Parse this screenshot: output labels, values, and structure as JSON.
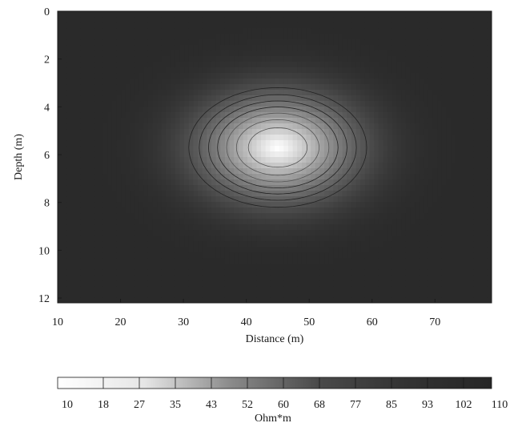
{
  "chart_data": {
    "type": "heatmap",
    "title": "",
    "xlabel": "Distance (m)",
    "ylabel": "Depth (m)",
    "xlim": [
      10,
      79
    ],
    "ylim": [
      0,
      12.2
    ],
    "y_inverted": true,
    "x_ticks": [
      10,
      20,
      30,
      40,
      50,
      60,
      70
    ],
    "y_ticks": [
      0,
      2,
      4,
      6,
      8,
      10,
      12
    ],
    "colorbar": {
      "label": "Ohm*m",
      "range": [
        10,
        110
      ],
      "ticks": [
        "10",
        "18",
        "27",
        "35",
        "43",
        "52",
        "60",
        "68",
        "77",
        "85",
        "93",
        "102",
        "110"
      ],
      "colormap": "white (low) to dark gray (high)"
    },
    "anomaly": {
      "description_value": "low-resistivity body",
      "center_x": 45,
      "center_depth": 5.7,
      "half_width_x": 13,
      "half_depth": 2.3,
      "min_resistivity": 10,
      "background_resistivity": 110
    },
    "contour_levels": [
      20,
      30,
      40,
      50,
      60,
      70,
      80
    ]
  },
  "colors": {
    "background_dark": "#2b2b2b",
    "low_value": "#ffffff"
  }
}
